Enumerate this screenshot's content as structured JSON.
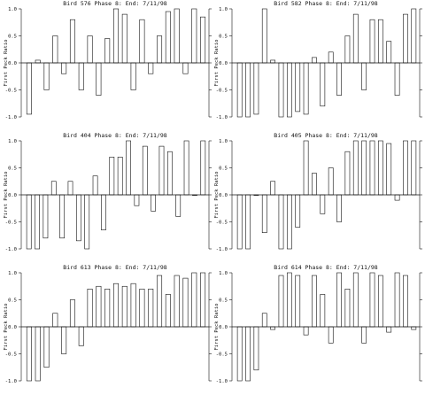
{
  "chart_data": [
    {
      "type": "bar",
      "title": "Bird 576 Phase 8:  End: 7/11/98",
      "ylabel": "First Peck Ratio",
      "ylim": [
        -1.0,
        1.0
      ],
      "yticks": [
        "1.0",
        "0.5",
        "0.0",
        "-0.5",
        "-1.0"
      ],
      "values": [
        -0.95,
        0.05,
        -0.5,
        0.5,
        -0.2,
        0.8,
        -0.5,
        0.5,
        -0.6,
        0.45,
        1.0,
        0.9,
        -0.5,
        0.8,
        -0.2,
        0.5,
        0.95,
        1.0,
        -0.2,
        1.0,
        0.85
      ]
    },
    {
      "type": "bar",
      "title": "Bird 582 Phase 8:  End: 7/11/98",
      "ylabel": "First Peck Ratio",
      "ylim": [
        -1.0,
        1.0
      ],
      "yticks": [
        "1.0",
        "0.5",
        "0.0",
        "-0.5",
        "-1.0"
      ],
      "values": [
        -1.0,
        -1.0,
        -0.95,
        1.0,
        0.05,
        -1.0,
        -1.0,
        -0.9,
        -0.95,
        0.1,
        -0.8,
        0.2,
        -0.6,
        0.5,
        0.9,
        -0.5,
        0.8,
        0.8,
        0.4,
        -0.6,
        0.9,
        1.0
      ]
    },
    {
      "type": "bar",
      "title": "Bird 404 Phase 8:  End: 7/11/98",
      "ylabel": "First Peck Ratio",
      "ylim": [
        -1.0,
        1.0
      ],
      "yticks": [
        "1.0",
        "0.5",
        "0.0",
        "-0.5",
        "-1.0"
      ],
      "values": [
        -1.0,
        -1.0,
        -0.8,
        0.25,
        -0.8,
        0.25,
        -0.85,
        -1.0,
        0.35,
        -0.65,
        0.7,
        0.7,
        1.0,
        -0.2,
        0.9,
        -0.3,
        0.9,
        0.8,
        -0.4,
        1.0,
        0.0,
        1.0
      ]
    },
    {
      "type": "bar",
      "title": "Bird 405 Phase 8:  End: 7/11/98",
      "ylabel": "First Peck Ratio",
      "ylim": [
        -1.0,
        1.0
      ],
      "yticks": [
        "1.0",
        "0.5",
        "0.0",
        "-0.5",
        "-1.0"
      ],
      "values": [
        -1.0,
        -1.0,
        0.0,
        -0.7,
        0.25,
        -1.0,
        -1.0,
        -0.6,
        1.0,
        0.4,
        -0.35,
        0.5,
        -0.5,
        0.8,
        1.0,
        1.0,
        1.0,
        1.0,
        0.95,
        -0.1,
        1.0,
        1.0
      ]
    },
    {
      "type": "bar",
      "title": "Bird 613 Phase 8:  End: 7/11/98",
      "ylabel": "First Peck Ratio",
      "ylim": [
        -1.0,
        1.0
      ],
      "yticks": [
        "1.0",
        "0.5",
        "0.0",
        "-0.5",
        "-1.0"
      ],
      "values": [
        -1.0,
        -1.0,
        -0.75,
        0.25,
        -0.5,
        0.5,
        -0.35,
        0.7,
        0.75,
        0.7,
        0.8,
        0.75,
        0.8,
        0.7,
        0.7,
        0.95,
        0.6,
        0.95,
        0.9,
        1.0,
        1.0
      ]
    },
    {
      "type": "bar",
      "title": "Bird 614 Phase 8:  End: 7/11/98",
      "ylabel": "First Peck Ratio",
      "ylim": [
        -1.0,
        1.0
      ],
      "yticks": [
        "1.0",
        "0.5",
        "0.0",
        "-0.5",
        "-1.0"
      ],
      "values": [
        -1.0,
        -1.0,
        -0.8,
        0.25,
        -0.05,
        0.95,
        1.0,
        0.95,
        -0.15,
        0.95,
        0.6,
        -0.3,
        1.0,
        0.7,
        1.0,
        -0.3,
        1.0,
        0.95,
        -0.1,
        1.0,
        0.95,
        -0.05
      ]
    }
  ]
}
